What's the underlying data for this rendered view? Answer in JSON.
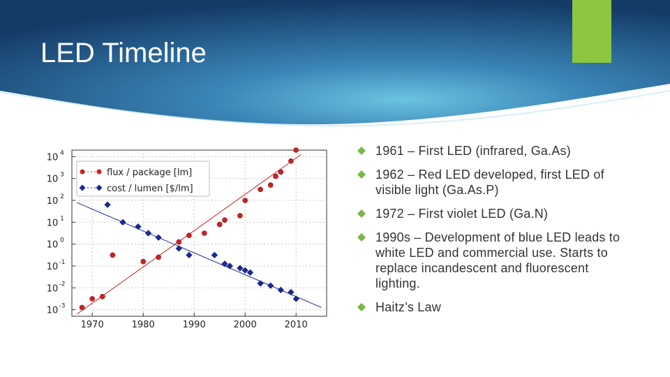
{
  "slide": {
    "title": "LED Timeline"
  },
  "colors": {
    "header_dark": "#1b3f6b",
    "header_mid": "#2a6fa3",
    "header_light": "#5bb0d8",
    "accent": "#8dc63f",
    "bullet": "#7ab648",
    "text": "#333333",
    "series_flux": "#cc2222",
    "series_cost": "#1a2a9a"
  },
  "bullets": [
    {
      "icon": "diamond-bullet-icon",
      "text": "1961 – First LED (infrared, Ga.As)"
    },
    {
      "icon": "diamond-bullet-icon",
      "text": "1962 – Red LED developed, first LED of visible light (Ga.As.P)"
    },
    {
      "icon": "diamond-bullet-icon",
      "text": "1972 – First violet LED (Ga.N)"
    },
    {
      "icon": "diamond-bullet-icon",
      "text": "1990s – Development of blue LED leads to white LED and commercial use. Starts to replace incandescent and fluorescent lighting."
    },
    {
      "icon": "diamond-bullet-icon",
      "text": "Haitz’s Law"
    }
  ],
  "chart_data": {
    "type": "scatter",
    "title": "",
    "xlabel": "",
    "ylabel": "",
    "xlim": [
      1966,
      2016
    ],
    "ylim_log10": [
      -3.3,
      4.3
    ],
    "y_scale": "log",
    "x_ticks": [
      1970,
      1980,
      1990,
      2000,
      2010
    ],
    "x_tick_labels": [
      "1970",
      "1980",
      "1990",
      "2000",
      "2010"
    ],
    "y_ticks_log10": [
      -3,
      -2,
      -1,
      0,
      1,
      2,
      3,
      4
    ],
    "y_tick_labels": [
      {
        "base": "10",
        "exp": "-3"
      },
      {
        "base": "10",
        "exp": "-2"
      },
      {
        "base": "10",
        "exp": "-1"
      },
      {
        "base": "10",
        "exp": "0"
      },
      {
        "base": "10",
        "exp": "1"
      },
      {
        "base": "10",
        "exp": "2"
      },
      {
        "base": "10",
        "exp": "3"
      },
      {
        "base": "10",
        "exp": "4"
      }
    ],
    "grid": true,
    "legend_position": "top-left",
    "series": [
      {
        "name": "flux / package [lm]",
        "marker": "circle",
        "color": "#cc2222",
        "x": [
          1968,
          1970,
          1972,
          1974,
          1980,
          1983,
          1987,
          1989,
          1992,
          1995,
          1996,
          1999,
          2000,
          2003,
          2005,
          2006,
          2007,
          2009,
          2010
        ],
        "log10_y": [
          -2.9,
          -2.5,
          -2.4,
          -0.5,
          -0.8,
          -0.6,
          0.1,
          0.4,
          0.5,
          0.9,
          1.1,
          1.3,
          2.0,
          2.5,
          2.7,
          3.1,
          3.3,
          3.8,
          4.3
        ],
        "trend_log10": {
          "x": [
            1967,
            2011
          ],
          "y": [
            -3.2,
            4.1
          ]
        }
      },
      {
        "name": "cost / lumen [$/lm]",
        "marker": "diamond",
        "color": "#1a2a9a",
        "x": [
          1973,
          1976,
          1979,
          1981,
          1983,
          1987,
          1989,
          1994,
          1996,
          1997,
          1999,
          2000,
          2001,
          2003,
          2005,
          2007,
          2009,
          2010
        ],
        "log10_y": [
          1.8,
          1.0,
          0.8,
          0.5,
          0.3,
          -0.2,
          -0.5,
          -0.5,
          -0.9,
          -1.0,
          -1.1,
          -1.2,
          -1.3,
          -1.8,
          -1.9,
          -2.1,
          -2.2,
          -2.5
        ],
        "trend_log10": {
          "x": [
            1967,
            2015
          ],
          "y": [
            1.9,
            -2.9
          ]
        }
      }
    ]
  }
}
